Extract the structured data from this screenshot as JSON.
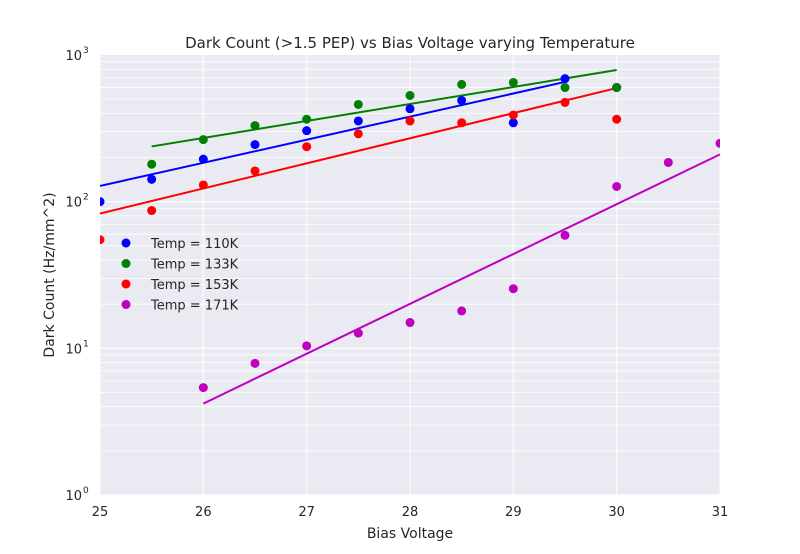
{
  "chart_data": {
    "type": "scatter",
    "title": "Dark Count (>1.5 PEP) vs Bias Voltage varying Temperature",
    "xlabel": "Bias Voltage",
    "ylabel": "Dark Count (Hz/mm^2)",
    "xlim": [
      25,
      31
    ],
    "ylim": [
      1,
      1000
    ],
    "yscale": "log",
    "grid": true,
    "legend_position": "center-left",
    "x_ticks": [
      "25",
      "26",
      "27",
      "28",
      "29",
      "30",
      "31"
    ],
    "y_ticks": [
      {
        "base": "10",
        "exp": "0",
        "value": 1
      },
      {
        "base": "10",
        "exp": "1",
        "value": 10
      },
      {
        "base": "10",
        "exp": "2",
        "value": 100
      },
      {
        "base": "10",
        "exp": "3",
        "value": 1000
      }
    ],
    "series": [
      {
        "name": "Temp = 110K",
        "color": "#0000ff",
        "points": [
          [
            25,
            100
          ],
          [
            25.5,
            142
          ],
          [
            26,
            195
          ],
          [
            26.5,
            245
          ],
          [
            27,
            305
          ],
          [
            27.5,
            355
          ],
          [
            28,
            430
          ],
          [
            28.5,
            490
          ],
          [
            29,
            345
          ],
          [
            29.5,
            690
          ],
          [
            30,
            600
          ]
        ],
        "fit": [
          [
            25,
            128
          ],
          [
            29.5,
            655
          ]
        ]
      },
      {
        "name": "Temp = 133K",
        "color": "#008000",
        "points": [
          [
            25.5,
            180
          ],
          [
            26,
            265
          ],
          [
            26.5,
            330
          ],
          [
            27,
            365
          ],
          [
            27.5,
            460
          ],
          [
            28,
            530
          ],
          [
            28.5,
            630
          ],
          [
            29,
            650
          ],
          [
            29.5,
            600
          ],
          [
            30,
            600
          ]
        ],
        "fit": [
          [
            25.5,
            238
          ],
          [
            30,
            790
          ]
        ]
      },
      {
        "name": "Temp = 153K",
        "color": "#ff0000",
        "points": [
          [
            25,
            55
          ],
          [
            25.5,
            87
          ],
          [
            26,
            130
          ],
          [
            26.5,
            162
          ],
          [
            27,
            237
          ],
          [
            27.5,
            290
          ],
          [
            28,
            355
          ],
          [
            28.5,
            345
          ],
          [
            29,
            390
          ],
          [
            29.5,
            475
          ],
          [
            30,
            365
          ]
        ],
        "fit": [
          [
            25,
            83
          ],
          [
            30,
            595
          ]
        ]
      },
      {
        "name": "Temp = 171K",
        "color": "#bf00bf",
        "points": [
          [
            26,
            5.4
          ],
          [
            26.5,
            7.9
          ],
          [
            27,
            10.4
          ],
          [
            27.5,
            12.7
          ],
          [
            28,
            15
          ],
          [
            28.5,
            18
          ],
          [
            29,
            25.5
          ],
          [
            29.5,
            59
          ],
          [
            30,
            127
          ],
          [
            30.5,
            185
          ],
          [
            31,
            250
          ]
        ],
        "fit": [
          [
            26,
            4.2
          ],
          [
            31,
            210
          ]
        ]
      }
    ]
  }
}
